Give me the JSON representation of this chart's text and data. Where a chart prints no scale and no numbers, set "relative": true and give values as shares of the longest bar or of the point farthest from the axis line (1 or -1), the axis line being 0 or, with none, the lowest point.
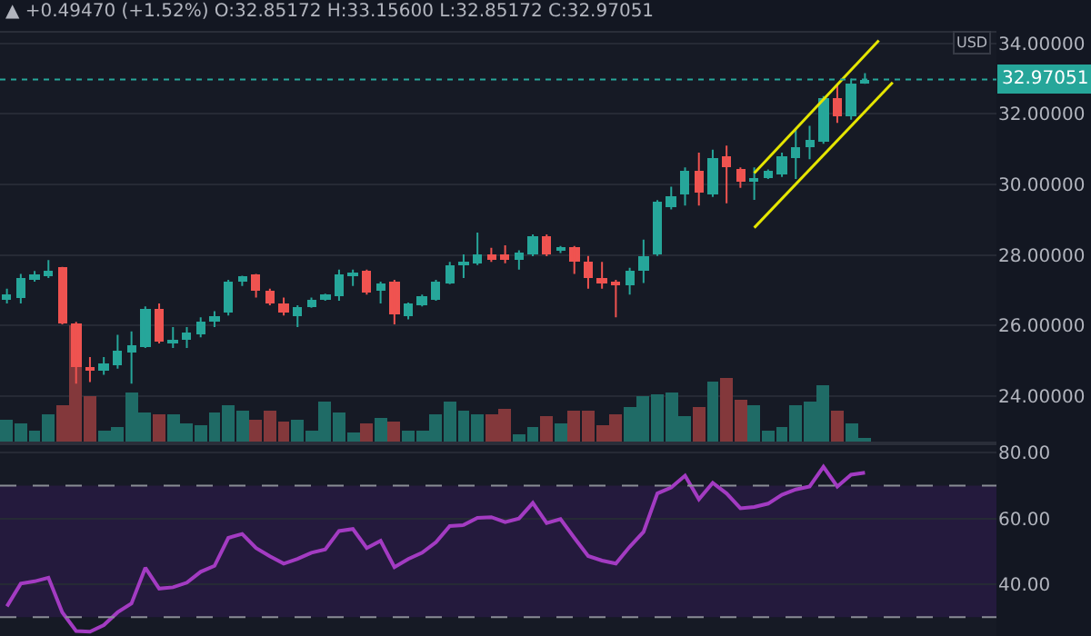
{
  "chart_data": [
    {
      "type": "candlestick",
      "title": "▲ +0.49470 (+1.52%) O:32.85172 H:33.15600 L:32.85172 C:32.97051",
      "ylabel": "USD",
      "categories": [
        null,
        null,
        null,
        null,
        null,
        null,
        null,
        null,
        null,
        null,
        null,
        null,
        null,
        null,
        null,
        null,
        null,
        null,
        null,
        null,
        null,
        null,
        null,
        null,
        null,
        null,
        null,
        null,
        null,
        null,
        null,
        null,
        null,
        null,
        null,
        null,
        null,
        null,
        null,
        null,
        null,
        null,
        null,
        null,
        null,
        null,
        null,
        null,
        null,
        null,
        null,
        null,
        null,
        null,
        null,
        null,
        null,
        null,
        null,
        null,
        null,
        null,
        null,
        null,
        null,
        null,
        null,
        null,
        null,
        null,
        null,
        null
      ],
      "ohlc": [
        [
          26.7,
          27.04,
          26.62,
          26.87
        ],
        [
          26.79,
          27.46,
          26.62,
          27.34
        ],
        [
          27.29,
          27.54,
          27.24,
          27.43
        ],
        [
          27.41,
          27.85,
          27.34,
          27.53
        ],
        [
          27.63,
          27.66,
          26.03,
          26.08
        ],
        [
          26.08,
          26.1,
          24.35,
          24.82
        ],
        [
          24.82,
          25.1,
          24.39,
          24.72
        ],
        [
          24.72,
          25.1,
          24.6,
          24.9
        ],
        [
          24.86,
          25.73,
          24.77,
          25.28
        ],
        [
          25.23,
          25.83,
          24.35,
          25.44
        ],
        [
          25.41,
          26.54,
          25.36,
          26.49
        ],
        [
          26.49,
          26.62,
          25.49,
          25.53
        ],
        [
          25.48,
          25.95,
          25.36,
          25.61
        ],
        [
          25.61,
          25.95,
          25.36,
          25.78
        ],
        [
          25.73,
          26.23,
          25.66,
          26.12
        ],
        [
          26.12,
          26.4,
          25.95,
          26.28
        ],
        [
          26.37,
          27.29,
          26.28,
          27.24
        ],
        [
          27.24,
          27.41,
          27.12,
          27.38
        ],
        [
          27.43,
          27.46,
          26.79,
          26.96
        ],
        [
          26.96,
          27.04,
          26.57,
          26.62
        ],
        [
          26.62,
          26.79,
          26.28,
          26.37
        ],
        [
          26.28,
          26.57,
          25.95,
          26.5
        ],
        [
          26.5,
          26.79,
          26.5,
          26.74
        ],
        [
          26.75,
          26.9,
          26.7,
          26.87
        ],
        [
          26.84,
          27.58,
          26.7,
          27.43
        ],
        [
          27.43,
          27.58,
          27.12,
          27.49
        ],
        [
          27.54,
          27.58,
          26.87,
          26.91
        ],
        [
          26.96,
          27.24,
          26.62,
          27.2
        ],
        [
          27.24,
          27.29,
          26.03,
          26.32
        ],
        [
          26.28,
          26.65,
          26.17,
          26.62
        ],
        [
          26.58,
          26.87,
          26.54,
          26.82
        ],
        [
          26.75,
          27.29,
          26.7,
          27.24
        ],
        [
          27.2,
          27.8,
          27.17,
          27.71
        ],
        [
          27.71,
          28.01,
          27.34,
          27.8
        ],
        [
          27.75,
          28.63,
          27.71,
          28.0
        ],
        [
          28.0,
          28.2,
          27.8,
          27.88
        ],
        [
          28.0,
          28.27,
          27.76,
          27.85
        ],
        [
          27.85,
          28.13,
          27.58,
          28.05
        ],
        [
          28.01,
          28.58,
          27.96,
          28.55
        ],
        [
          28.55,
          28.58,
          27.96,
          28.01
        ],
        [
          28.13,
          28.25,
          28.05,
          28.21
        ],
        [
          28.21,
          28.25,
          27.46,
          27.8
        ],
        [
          27.8,
          27.97,
          27.04,
          27.34
        ],
        [
          27.34,
          27.8,
          27.04,
          27.17
        ],
        [
          27.24,
          27.29,
          26.23,
          27.12
        ],
        [
          27.12,
          27.63,
          26.87,
          27.54
        ],
        [
          27.54,
          28.43,
          27.2,
          27.97
        ],
        [
          28.0,
          29.55,
          27.97,
          29.5
        ],
        [
          29.35,
          29.93,
          29.29,
          29.68
        ],
        [
          29.73,
          30.48,
          29.4,
          30.4
        ],
        [
          30.4,
          30.9,
          29.4,
          29.76
        ],
        [
          29.69,
          30.98,
          29.64,
          30.76
        ],
        [
          30.81,
          31.1,
          29.46,
          30.48
        ],
        [
          30.43,
          30.48,
          29.9,
          30.06
        ],
        [
          30.12,
          30.48,
          29.56,
          30.18
        ],
        [
          30.2,
          30.42,
          30.15,
          30.38
        ],
        [
          30.3,
          30.9,
          30.21,
          30.81
        ],
        [
          30.76,
          31.57,
          30.15,
          31.07
        ],
        [
          31.04,
          31.66,
          30.71,
          31.24
        ],
        [
          31.2,
          32.5,
          31.15,
          32.46
        ],
        [
          32.46,
          32.84,
          31.74,
          31.91
        ],
        [
          31.91,
          33.0,
          31.83,
          32.84
        ],
        [
          32.85172,
          33.156,
          32.85172,
          32.97051
        ],
        null,
        null,
        null,
        null,
        null,
        null,
        null,
        null,
        null
      ],
      "colors": [
        "#26a69a",
        "#26a69a",
        "#26a69a",
        "#26a69a",
        "#ef5350",
        "#ef5350",
        "#ef5350",
        "#26a69a",
        "#26a69a",
        "#26a69a",
        "#26a69a",
        "#ef5350",
        "#26a69a",
        "#26a69a",
        "#26a69a",
        "#26a69a",
        "#26a69a",
        "#26a69a",
        "#ef5350",
        "#ef5350",
        "#ef5350",
        "#26a69a",
        "#26a69a",
        "#26a69a",
        "#26a69a",
        "#26a69a",
        "#ef5350",
        "#26a69a",
        "#ef5350",
        "#26a69a",
        "#26a69a",
        "#26a69a",
        "#26a69a",
        "#26a69a",
        "#26a69a",
        "#ef5350",
        "#ef5350",
        "#26a69a",
        "#26a69a",
        "#ef5350",
        "#26a69a",
        "#ef5350",
        "#ef5350",
        "#ef5350",
        "#ef5350",
        "#26a69a",
        "#26a69a",
        "#26a69a",
        "#26a69a",
        "#26a69a",
        "#ef5350",
        "#26a69a",
        "#ef5350",
        "#ef5350",
        "#26a69a",
        "#26a69a",
        "#26a69a",
        "#26a69a",
        "#26a69a",
        "#26a69a",
        "#ef5350",
        "#26a69a",
        "#26a69a",
        null,
        null,
        null,
        null,
        null,
        null,
        null,
        null,
        null
      ],
      "series": [
        {
          "type": "line",
          "color": "#e5e500",
          "values": [
            null,
            null,
            null,
            null,
            null,
            null,
            null,
            null,
            null,
            null,
            null,
            null,
            null,
            null,
            null,
            null,
            null,
            null,
            null,
            null,
            null,
            null,
            null,
            null,
            null,
            null,
            null,
            null,
            null,
            null,
            null,
            null,
            null,
            null,
            null,
            null,
            null,
            null,
            null,
            null,
            null,
            null,
            null,
            null,
            null,
            null,
            null,
            null,
            null,
            null,
            null,
            null,
            null,
            null,
            30.32,
            null,
            null,
            null,
            null,
            null,
            null,
            null,
            null,
            34.08,
            null,
            null,
            null,
            null,
            null,
            null,
            null,
            null
          ]
        },
        {
          "type": "line",
          "color": "#e5e500",
          "values": [
            null,
            null,
            null,
            null,
            null,
            null,
            null,
            null,
            null,
            null,
            null,
            null,
            null,
            null,
            null,
            null,
            null,
            null,
            null,
            null,
            null,
            null,
            null,
            null,
            null,
            null,
            null,
            null,
            null,
            null,
            null,
            null,
            null,
            null,
            null,
            null,
            null,
            null,
            null,
            null,
            null,
            null,
            null,
            null,
            null,
            null,
            null,
            null,
            null,
            null,
            null,
            null,
            null,
            null,
            28.77,
            null,
            null,
            null,
            null,
            null,
            null,
            null,
            null,
            null,
            32.89,
            null,
            null,
            null,
            null,
            null,
            null,
            null
          ]
        }
      ],
      "ref_lines": [
        {
          "axis": "y",
          "value": 32.97051,
          "label": "32.97051",
          "color": "#26a69a",
          "line_style": "dotted"
        }
      ],
      "ylim": [
        22.7,
        34.3
      ],
      "yticks": [
        {
          "value": 24,
          "label": "24.00000"
        },
        {
          "value": 26,
          "label": "26.00000"
        },
        {
          "value": 28,
          "label": "28.00000"
        },
        {
          "value": 30,
          "label": "30.00000"
        },
        {
          "value": 32,
          "label": "32.00000"
        },
        {
          "value": 34,
          "label": "34.00000"
        }
      ],
      "grid": "y",
      "tick_labels": "y"
    },
    {
      "type": "bar",
      "relative": true,
      "tick_labels": false,
      "categories": [
        null,
        null,
        null,
        null,
        null,
        null,
        null,
        null,
        null,
        null,
        null,
        null,
        null,
        null,
        null,
        null,
        null,
        null,
        null,
        null,
        null,
        null,
        null,
        null,
        null,
        null,
        null,
        null,
        null,
        null,
        null,
        null,
        null,
        null,
        null,
        null,
        null,
        null,
        null,
        null,
        null,
        null,
        null,
        null,
        null,
        null,
        null,
        null,
        null,
        null,
        null,
        null,
        null,
        null,
        null,
        null,
        null,
        null,
        null,
        null,
        null,
        null,
        null,
        null,
        null,
        null,
        null,
        null,
        null,
        null,
        null,
        null
      ],
      "values": [
        0.19,
        0.15,
        0.1,
        0.24,
        0.32,
        1.0,
        0.39,
        0.1,
        0.12,
        0.42,
        0.25,
        0.23,
        0.23,
        0.16,
        0.14,
        0.25,
        0.32,
        0.27,
        0.19,
        0.27,
        0.18,
        0.19,
        0.1,
        0.34,
        0.25,
        0.08,
        0.15,
        0.2,
        0.18,
        0.09,
        0.09,
        0.23,
        0.35,
        0.27,
        0.23,
        0.23,
        0.28,
        0.06,
        0.13,
        0.22,
        0.16,
        0.27,
        0.27,
        0.14,
        0.24,
        0.29,
        0.39,
        0.41,
        0.42,
        0.22,
        0.29,
        0.51,
        0.55,
        0.36,
        0.31,
        0.1,
        0.12,
        0.32,
        0.35,
        0.49,
        0.27,
        0.16,
        0.03,
        null,
        null,
        null,
        null,
        null,
        null,
        null,
        null,
        null
      ],
      "colors": [
        "#1f6b66",
        "#1f6b66",
        "#1f6b66",
        "#1f6b66",
        "#83383b",
        "#83383b",
        "#83383b",
        "#1f6b66",
        "#1f6b66",
        "#1f6b66",
        "#1f6b66",
        "#83383b",
        "#1f6b66",
        "#1f6b66",
        "#1f6b66",
        "#1f6b66",
        "#1f6b66",
        "#1f6b66",
        "#83383b",
        "#83383b",
        "#83383b",
        "#1f6b66",
        "#1f6b66",
        "#1f6b66",
        "#1f6b66",
        "#1f6b66",
        "#83383b",
        "#1f6b66",
        "#83383b",
        "#1f6b66",
        "#1f6b66",
        "#1f6b66",
        "#1f6b66",
        "#1f6b66",
        "#1f6b66",
        "#83383b",
        "#83383b",
        "#1f6b66",
        "#1f6b66",
        "#83383b",
        "#1f6b66",
        "#83383b",
        "#83383b",
        "#83383b",
        "#83383b",
        "#1f6b66",
        "#1f6b66",
        "#1f6b66",
        "#1f6b66",
        "#1f6b66",
        "#83383b",
        "#1f6b66",
        "#83383b",
        "#83383b",
        "#1f6b66",
        "#1f6b66",
        "#1f6b66",
        "#1f6b66",
        "#1f6b66",
        "#1f6b66",
        "#83383b",
        "#1f6b66",
        "#1f6b66",
        null,
        null,
        null,
        null,
        null,
        null,
        null,
        null,
        null
      ]
    },
    {
      "type": "line",
      "color": "#a33bc2",
      "tick_labels": "y",
      "grid": "y",
      "categories": [
        null,
        null,
        null,
        null,
        null,
        null,
        null,
        null,
        null,
        null,
        null,
        null,
        null,
        null,
        null,
        null,
        null,
        null,
        null,
        null,
        null,
        null,
        null,
        null,
        null,
        null,
        null,
        null,
        null,
        null,
        null,
        null,
        null,
        null,
        null,
        null,
        null,
        null,
        null,
        null,
        null,
        null,
        null,
        null,
        null,
        null,
        null,
        null,
        null,
        null,
        null,
        null,
        null,
        null,
        null,
        null,
        null,
        null,
        null,
        null,
        null,
        null,
        null,
        null,
        null,
        null,
        null,
        null,
        null,
        null,
        null,
        null
      ],
      "values": [
        33.3,
        40.2,
        40.9,
        42.0,
        31.5,
        25.8,
        25.6,
        27.6,
        31.5,
        34.2,
        45.0,
        38.7,
        39.1,
        40.5,
        43.8,
        45.6,
        54.1,
        55.3,
        51.0,
        48.5,
        46.3,
        47.7,
        49.6,
        50.6,
        56.2,
        56.8,
        51.0,
        53.2,
        45.2,
        47.7,
        49.6,
        52.8,
        57.7,
        58.0,
        60.2,
        60.4,
        58.9,
        60.0,
        64.7,
        58.6,
        59.8,
        54.1,
        48.6,
        47.2,
        46.3,
        51.4,
        55.9,
        67.6,
        69.4,
        73.0,
        65.8,
        70.8,
        67.6,
        63.1,
        63.5,
        64.5,
        67.2,
        68.8,
        69.7,
        75.7,
        69.7,
        73.3,
        73.9,
        null,
        null,
        null,
        null,
        null,
        null,
        null,
        null,
        null
      ],
      "bands": [
        {
          "axis": "y",
          "from": 30,
          "to": 70,
          "color": "#241a3d"
        }
      ],
      "ref_lines": [
        {
          "axis": "y",
          "value": 70,
          "color": "#8a8d96",
          "line_style": "dashed"
        },
        {
          "axis": "y",
          "value": 30,
          "color": "#8a8d96",
          "line_style": "dashed"
        }
      ],
      "ylim": [
        24.3,
        82.2
      ],
      "yticks": [
        {
          "value": 40,
          "label": "40.00"
        },
        {
          "value": 60,
          "label": "60.00"
        },
        {
          "value": 80,
          "label": "80.00"
        }
      ]
    }
  ]
}
